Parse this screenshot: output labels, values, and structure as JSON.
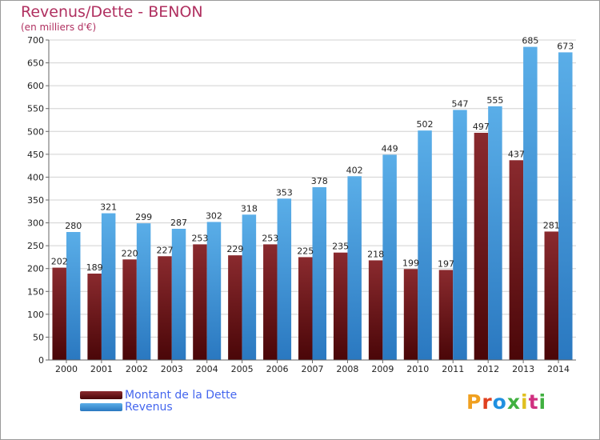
{
  "title": "Revenus/Dette - BENON",
  "subtitle": "(en milliers d'€)",
  "colors": {
    "dette": "#7a1f22",
    "revenus": "#4aa3e2",
    "title": "#b03060",
    "legend_text": "#4466ee"
  },
  "legend": {
    "dette_label": "Montant de la Dette",
    "revenus_label": "Revenus"
  },
  "logo": {
    "text": "Proxiti"
  },
  "chart_data": {
    "type": "bar",
    "title": "Revenus/Dette - BENON",
    "ylabel": "(en milliers d'€)",
    "xlabel": "",
    "ylim": [
      0,
      700
    ],
    "yticks": [
      0,
      50,
      100,
      150,
      200,
      250,
      300,
      350,
      400,
      450,
      500,
      550,
      600,
      650,
      700
    ],
    "grid": true,
    "categories": [
      "2000",
      "2001",
      "2002",
      "2003",
      "2004",
      "2005",
      "2006",
      "2007",
      "2008",
      "2009",
      "2010",
      "2011",
      "2012",
      "2013",
      "2014"
    ],
    "series": [
      {
        "name": "Montant de la Dette",
        "values": [
          202,
          189,
          220,
          227,
          253,
          229,
          253,
          225,
          235,
          218,
          199,
          197,
          497,
          437,
          281
        ]
      },
      {
        "name": "Revenus",
        "values": [
          280,
          321,
          299,
          287,
          302,
          318,
          353,
          378,
          402,
          449,
          502,
          547,
          555,
          685,
          673
        ]
      }
    ]
  }
}
